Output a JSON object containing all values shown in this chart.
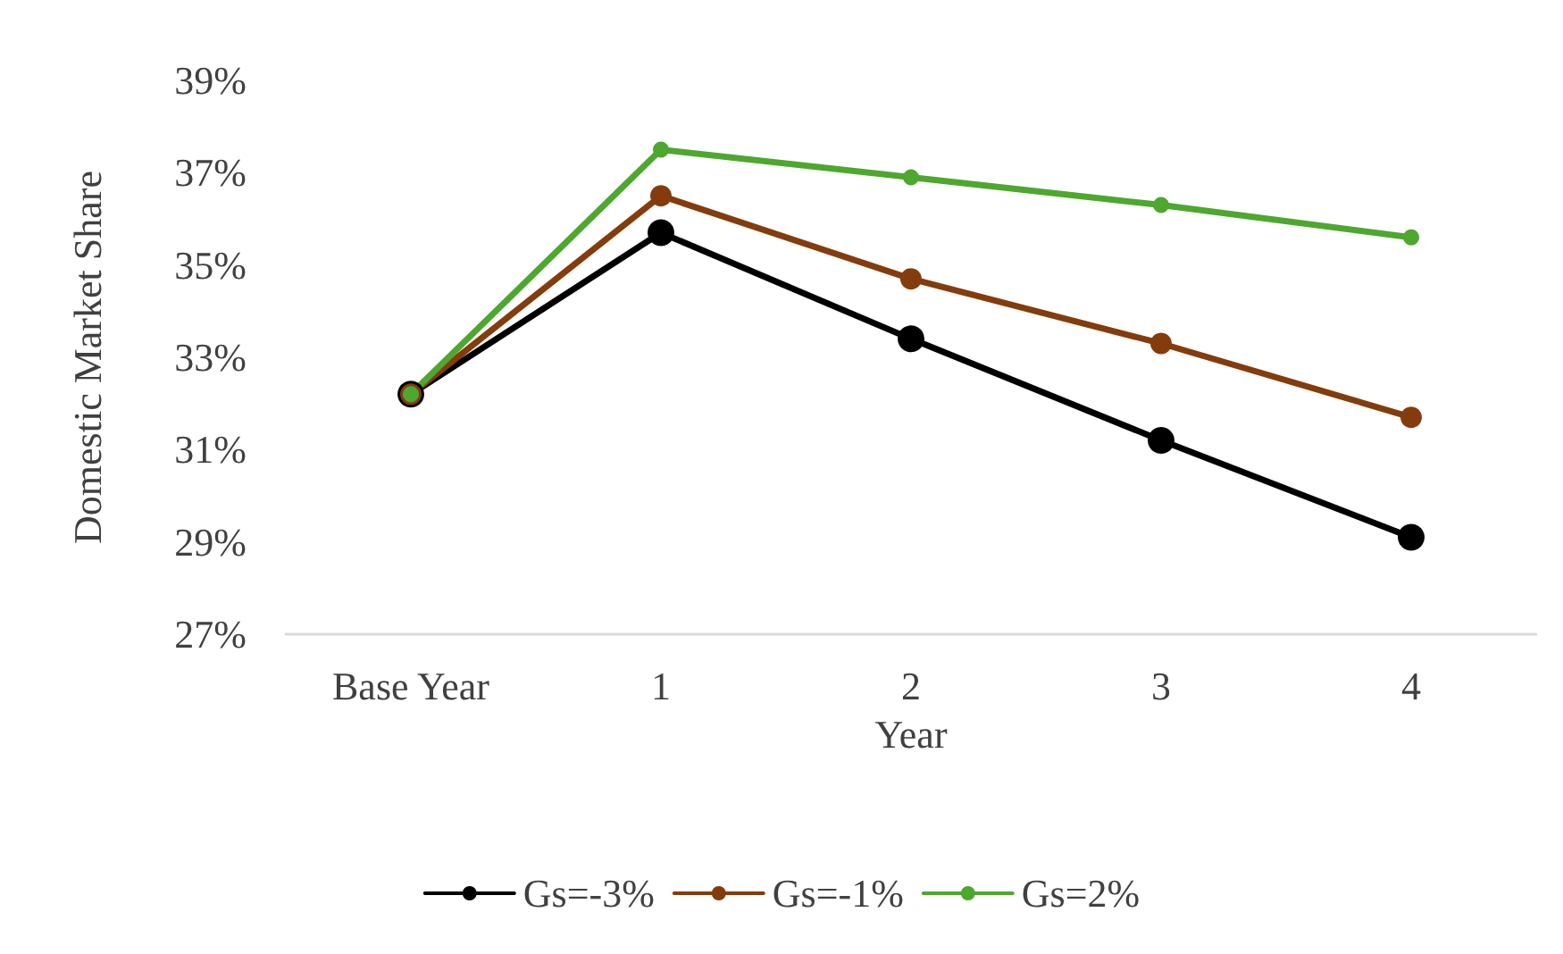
{
  "chart_data": {
    "type": "line",
    "xlabel": "Year",
    "ylabel": "Domestic Market Share",
    "categories": [
      "Base Year",
      "1",
      "2",
      "3",
      "4"
    ],
    "series": [
      {
        "name": "Gs=-3%",
        "color": "#000000",
        "values": [
          32.2,
          35.7,
          33.4,
          31.2,
          29.1
        ]
      },
      {
        "name": "Gs=-1%",
        "color": "#843c0c",
        "values": [
          32.2,
          36.5,
          34.7,
          33.3,
          31.7
        ]
      },
      {
        "name": "Gs=2%",
        "color": "#4ea72e",
        "values": [
          32.2,
          37.5,
          36.9,
          36.3,
          35.6
        ]
      }
    ],
    "ylim": [
      27,
      39
    ],
    "yticks": [
      {
        "value": 27,
        "label": "27%"
      },
      {
        "value": 29,
        "label": "29%"
      },
      {
        "value": 31,
        "label": "31%"
      },
      {
        "value": 33,
        "label": "33%"
      },
      {
        "value": 35,
        "label": "35%"
      },
      {
        "value": 37,
        "label": "37%"
      },
      {
        "value": 39,
        "label": "39%"
      }
    ],
    "grid": false,
    "legend": "bottom",
    "marker": "circle",
    "line_style": "solid"
  }
}
